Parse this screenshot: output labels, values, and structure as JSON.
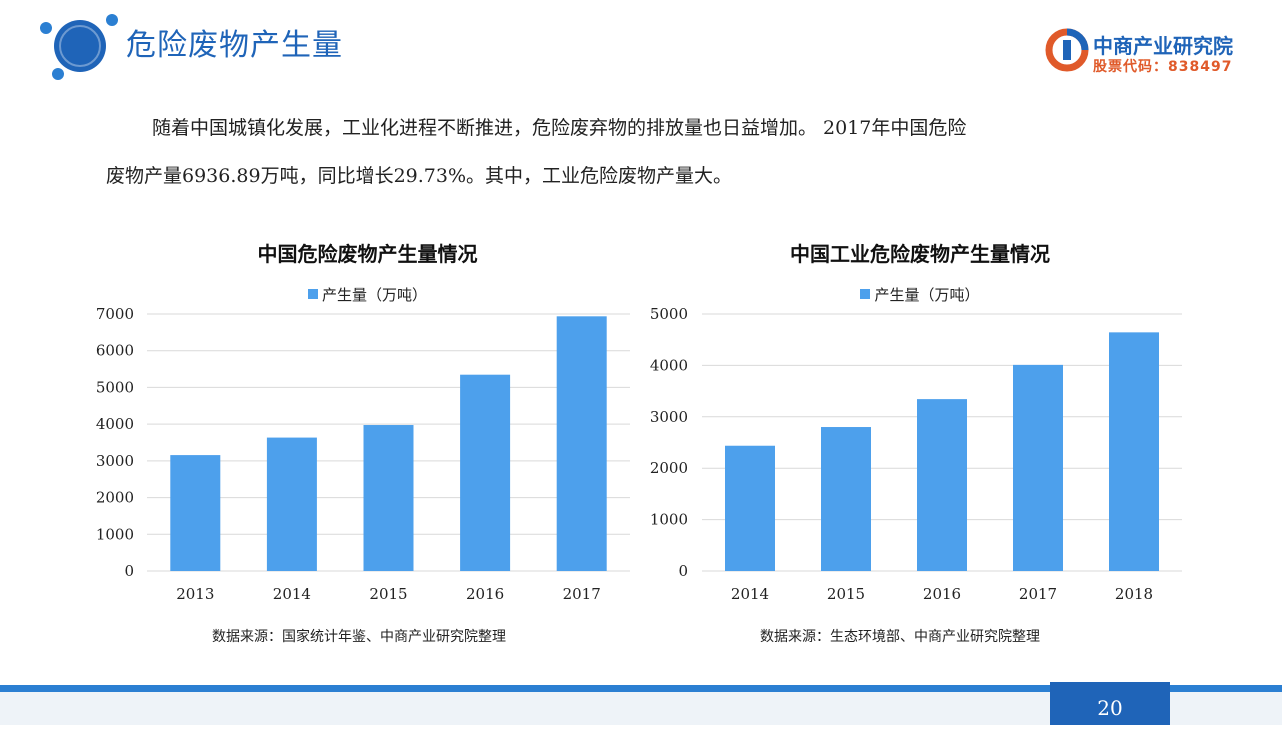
{
  "header": {
    "title": "危险废物产生量",
    "brand_name": "中商产业研究院",
    "brand_stock": "股票代码：838497"
  },
  "intro": {
    "line1": "随着中国城镇化发展，工业化进程不断推进，危险废弃物的排放量也日益增加。 2017年中国危险",
    "line2": "废物产量6936.89万吨，同比增长29.73%。其中，工业危险废物产量大。"
  },
  "colors": {
    "accent": "#1f64b8",
    "bar": "#4da0ec",
    "stock": "#e05a2a"
  },
  "chart_data": [
    {
      "type": "bar",
      "title": "中国危险废物产生量情况",
      "categories": [
        "2013",
        "2014",
        "2015",
        "2016",
        "2017"
      ],
      "series": [
        {
          "name": "产生量（万吨）",
          "values": [
            3157,
            3634,
            3976,
            5347,
            6937
          ]
        }
      ],
      "yticks": [
        "0",
        "1000",
        "2000",
        "3000",
        "4000",
        "5000",
        "6000",
        "7000"
      ],
      "ylim": [
        0,
        7000
      ],
      "grid": true,
      "legend": "top",
      "source": "数据来源：国家统计年鉴、中商产业研究院整理"
    },
    {
      "type": "bar",
      "title": "中国工业危险废物产生量情况",
      "categories": [
        "2014",
        "2015",
        "2016",
        "2017",
        "2018"
      ],
      "series": [
        {
          "name": "产生量（万吨）",
          "values": [
            2437,
            2801,
            3344,
            4010,
            4643
          ]
        }
      ],
      "yticks": [
        "0",
        "1000",
        "2000",
        "3000",
        "4000",
        "5000"
      ],
      "ylim": [
        0,
        5000
      ],
      "grid": true,
      "legend": "top",
      "source": "数据来源：生态环境部、中商产业研究院整理"
    }
  ],
  "footer": {
    "page_number": "20"
  }
}
